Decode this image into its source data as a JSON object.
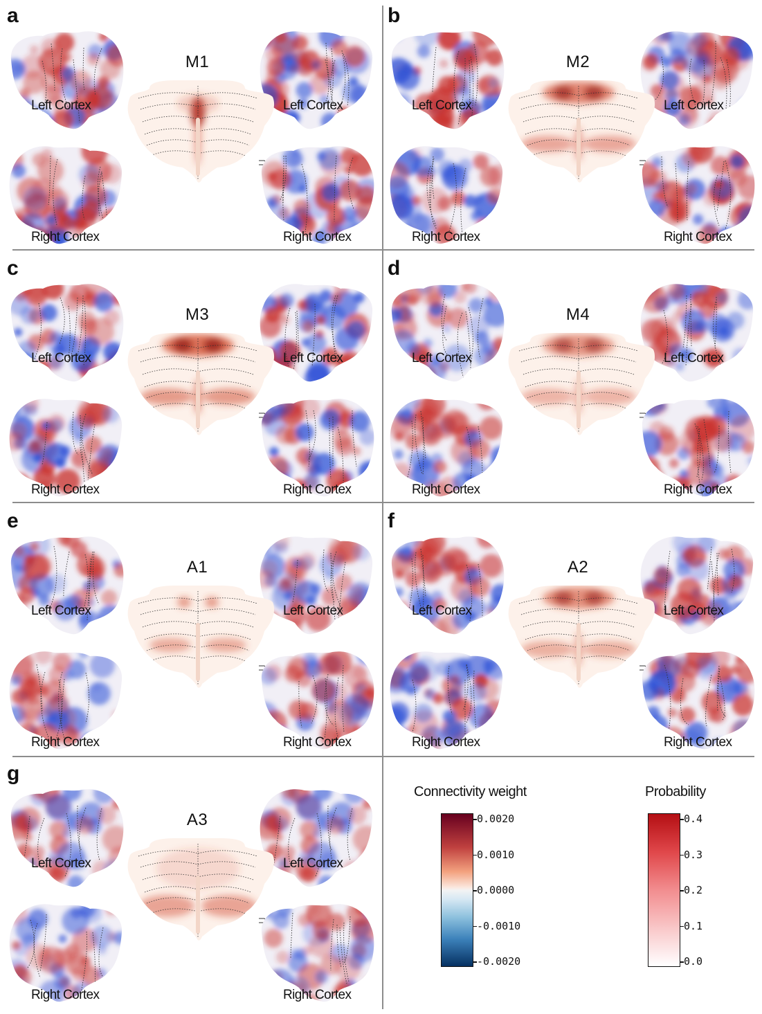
{
  "panels": [
    {
      "letter": "a",
      "title": "M1",
      "intensity": 0.9,
      "pattern": "midline"
    },
    {
      "letter": "b",
      "title": "M2",
      "intensity": 0.85,
      "pattern": "top-bottom"
    },
    {
      "letter": "c",
      "title": "M3",
      "intensity": 1.0,
      "pattern": "top-bottom"
    },
    {
      "letter": "d",
      "title": "M4",
      "intensity": 0.7,
      "pattern": "top-bottom"
    },
    {
      "letter": "e",
      "title": "A1",
      "intensity": 0.4,
      "pattern": "spots"
    },
    {
      "letter": "f",
      "title": "A2",
      "intensity": 0.75,
      "pattern": "top-bottom"
    },
    {
      "letter": "g",
      "title": "A3",
      "intensity": 0.45,
      "pattern": "bottom"
    }
  ],
  "labels": {
    "left_cortex": "Left Cortex",
    "right_cortex": "Right Cortex"
  },
  "legend": {
    "connectivity": {
      "title": "Connectivity weight",
      "ticks": [
        "0.0020",
        "0.0010",
        "0.0000",
        "-0.0010",
        "-0.0020"
      ]
    },
    "probability": {
      "title": "Probability",
      "ticks": [
        "0.4",
        "0.3",
        "0.2",
        "0.1",
        "0.0"
      ]
    }
  },
  "colors": {
    "positive": "#c9302c",
    "negative": "#2b4fd6",
    "divider": "#8c8c8c"
  }
}
